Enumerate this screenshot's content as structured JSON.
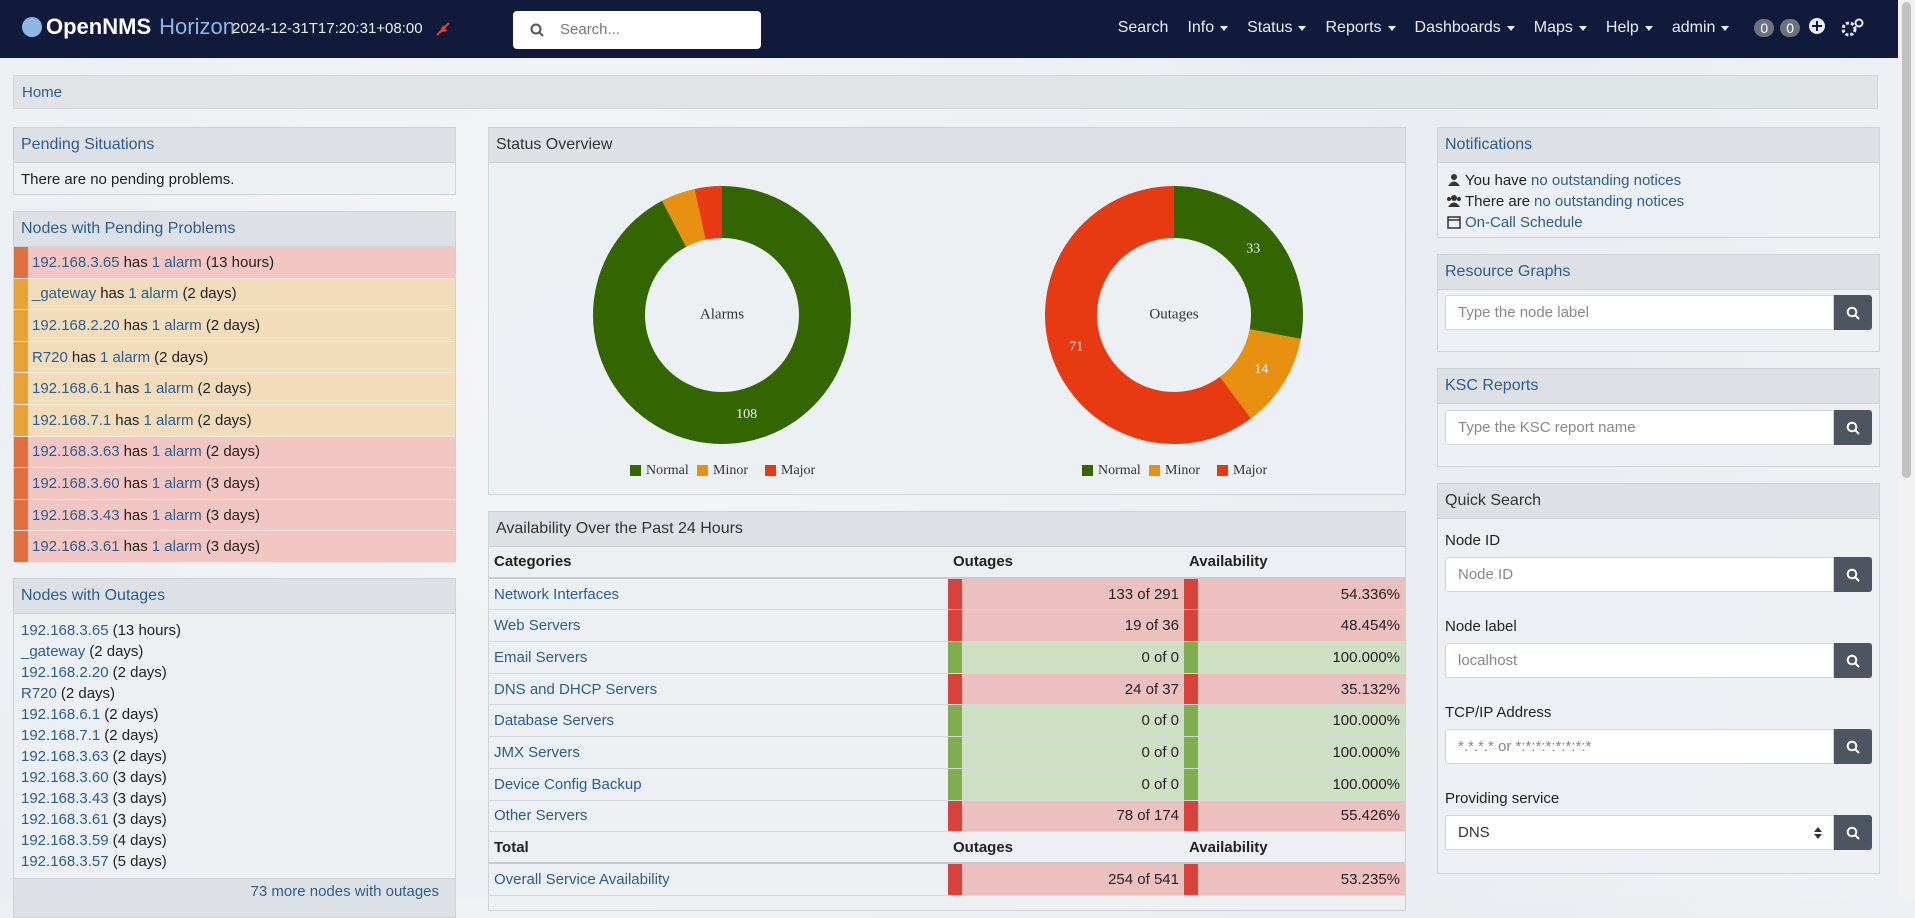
{
  "navbar": {
    "brand": "OpenNMS",
    "product": "Horizon",
    "timestamp": "2024-12-31T17:20:31+08:00",
    "search_placeholder": "Search...",
    "menu": [
      "Search",
      "Info",
      "Status",
      "Reports",
      "Dashboards",
      "Maps",
      "Help",
      "admin"
    ],
    "badges": [
      "0",
      "0"
    ]
  },
  "breadcrumb": [
    "Home"
  ],
  "pending_situations": {
    "title": "Pending Situations",
    "text": "There are no pending problems."
  },
  "pending_problems": {
    "title": "Nodes with Pending Problems",
    "connector": "has",
    "rows": [
      {
        "node": "192.168.3.65",
        "alarms": "1 alarm",
        "age": "(13 hours)",
        "color": "#f2c6c2",
        "accent": "#e0703f"
      },
      {
        "node": "_gateway",
        "alarms": "1 alarm",
        "age": "(2 days)",
        "color": "#f1dcbc",
        "accent": "#e8a238"
      },
      {
        "node": "192.168.2.20",
        "alarms": "1 alarm",
        "age": "(2 days)",
        "color": "#f1dcbc",
        "accent": "#e8a238"
      },
      {
        "node": "R720",
        "alarms": "1 alarm",
        "age": "(2 days)",
        "color": "#f1dcbc",
        "accent": "#e8a238"
      },
      {
        "node": "192.168.6.1",
        "alarms": "1 alarm",
        "age": "(2 days)",
        "color": "#f1dcbc",
        "accent": "#e8a238"
      },
      {
        "node": "192.168.7.1",
        "alarms": "1 alarm",
        "age": "(2 days)",
        "color": "#f1dcbc",
        "accent": "#e8a238"
      },
      {
        "node": "192.168.3.63",
        "alarms": "1 alarm",
        "age": "(2 days)",
        "color": "#f2c6c2",
        "accent": "#e0703f"
      },
      {
        "node": "192.168.3.60",
        "alarms": "1 alarm",
        "age": "(3 days)",
        "color": "#f2c6c2",
        "accent": "#e0703f"
      },
      {
        "node": "192.168.3.43",
        "alarms": "1 alarm",
        "age": "(3 days)",
        "color": "#f2c6c2",
        "accent": "#e0703f"
      },
      {
        "node": "192.168.3.61",
        "alarms": "1 alarm",
        "age": "(3 days)",
        "color": "#f2c6c2",
        "accent": "#e0703f"
      }
    ]
  },
  "outages": {
    "title": "Nodes with Outages",
    "rows": [
      {
        "node": "192.168.3.65",
        "age": "(13 hours)"
      },
      {
        "node": "_gateway",
        "age": "(2 days)"
      },
      {
        "node": "192.168.2.20",
        "age": "(2 days)"
      },
      {
        "node": "R720",
        "age": "(2 days)"
      },
      {
        "node": "192.168.6.1",
        "age": "(2 days)"
      },
      {
        "node": "192.168.7.1",
        "age": "(2 days)"
      },
      {
        "node": "192.168.3.63",
        "age": "(2 days)"
      },
      {
        "node": "192.168.3.60",
        "age": "(3 days)"
      },
      {
        "node": "192.168.3.43",
        "age": "(3 days)"
      },
      {
        "node": "192.168.3.61",
        "age": "(3 days)"
      },
      {
        "node": "192.168.3.59",
        "age": "(4 days)"
      },
      {
        "node": "192.168.3.57",
        "age": "(5 days)"
      }
    ],
    "more": "73 more nodes with outages"
  },
  "status_overview": {
    "title": "Status Overview"
  },
  "chart_data": [
    {
      "type": "donut",
      "title": "Alarms",
      "categories": [
        "Normal",
        "Minor",
        "Major"
      ],
      "values": [
        108,
        5,
        4
      ],
      "colors": [
        "#336600",
        "#e8900f",
        "#e83a12"
      ]
    },
    {
      "type": "donut",
      "title": "Outages",
      "categories": [
        "Normal",
        "Minor",
        "Major"
      ],
      "values": [
        33,
        14,
        71
      ],
      "colors": [
        "#336600",
        "#e8900f",
        "#e83a12"
      ]
    }
  ],
  "availability": {
    "title": "Availability Over the Past 24 Hours",
    "header": [
      "Categories",
      "Outages",
      "Availability"
    ],
    "rows": [
      {
        "category": "Network Interfaces",
        "outages": "133 of 291",
        "availability": "54.336%",
        "color": "#ecc0bf",
        "accent": "#d9423a"
      },
      {
        "category": "Web Servers",
        "outages": "19 of 36",
        "availability": "48.454%",
        "color": "#ecc0bf",
        "accent": "#d9423a"
      },
      {
        "category": "Email Servers",
        "outages": "0 of 0",
        "availability": "100.000%",
        "color": "#cfdfc4",
        "accent": "#7fae50"
      },
      {
        "category": "DNS and DHCP Servers",
        "outages": "24 of 37",
        "availability": "35.132%",
        "color": "#ecc0bf",
        "accent": "#d9423a"
      },
      {
        "category": "Database Servers",
        "outages": "0 of 0",
        "availability": "100.000%",
        "color": "#cfdfc4",
        "accent": "#7fae50"
      },
      {
        "category": "JMX Servers",
        "outages": "0 of 0",
        "availability": "100.000%",
        "color": "#cfdfc4",
        "accent": "#7fae50"
      },
      {
        "category": "Device Config Backup",
        "outages": "0 of 0",
        "availability": "100.000%",
        "color": "#cfdfc4",
        "accent": "#7fae50"
      },
      {
        "category": "Other Servers",
        "outages": "78 of 174",
        "availability": "55.426%",
        "color": "#ecc0bf",
        "accent": "#d9423a"
      }
    ],
    "total_header": [
      "Total",
      "Outages",
      "Availability"
    ],
    "total": {
      "category": "Overall Service Availability",
      "outages": "254 of 541",
      "availability": "53.235%",
      "color": "#ecc0bf",
      "accent": "#d9423a"
    }
  },
  "notifications": {
    "title": "Notifications",
    "items": [
      {
        "prefix": "You have",
        "link": "no outstanding notices"
      },
      {
        "prefix": "There are",
        "link": "no outstanding notices"
      },
      {
        "link": "On-Call Schedule"
      }
    ]
  },
  "resource_graphs": {
    "title": "Resource Graphs",
    "placeholder": "Type the node label"
  },
  "ksc_reports": {
    "title": "KSC Reports",
    "placeholder": "Type the KSC report name"
  },
  "quick_search": {
    "title": "Quick Search",
    "fields": [
      {
        "label": "Node ID",
        "placeholder": "Node ID"
      },
      {
        "label": "Node label",
        "placeholder": "localhost"
      },
      {
        "label": "TCP/IP Address",
        "placeholder": "*.*.*.* or *:*:*:*:*:*:*:*"
      },
      {
        "label": "Providing service",
        "value": "DNS"
      }
    ]
  }
}
